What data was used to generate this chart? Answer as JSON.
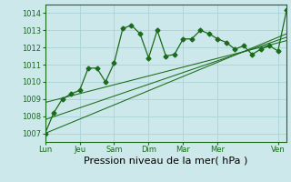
{
  "title": "Pression niveau de la mer( hPa )",
  "bg_color": "#cce8ea",
  "grid_color": "#aad4d6",
  "line_color": "#1a6b1a",
  "spine_color": "#1a6b1a",
  "xlim": [
    0,
    28
  ],
  "ylim": [
    1006.5,
    1014.5
  ],
  "yticks": [
    1007,
    1008,
    1009,
    1010,
    1011,
    1012,
    1013,
    1014
  ],
  "xtick_labels": [
    "Lun",
    "Jeu",
    "Sam",
    "Dim",
    "Mar",
    "Mer",
    "Ven"
  ],
  "xtick_positions": [
    0,
    4,
    8,
    12,
    16,
    20,
    27
  ],
  "main_x": [
    0,
    1,
    2,
    3,
    4,
    5,
    6,
    7,
    8,
    9,
    10,
    11,
    12,
    13,
    14,
    15,
    16,
    17,
    18,
    19,
    20,
    21,
    22,
    23,
    24,
    25,
    26,
    27,
    28
  ],
  "main_y": [
    1007.0,
    1008.2,
    1009.0,
    1009.3,
    1009.5,
    1010.8,
    1010.8,
    1010.0,
    1011.1,
    1013.1,
    1013.3,
    1012.8,
    1011.4,
    1013.0,
    1011.5,
    1011.6,
    1012.5,
    1012.5,
    1013.0,
    1012.8,
    1012.5,
    1012.3,
    1011.9,
    1012.1,
    1011.6,
    1011.9,
    1012.1,
    1011.8,
    1014.2
  ],
  "trend1_x": [
    0,
    28
  ],
  "trend1_y": [
    1007.0,
    1012.8
  ],
  "trend2_x": [
    0,
    28
  ],
  "trend2_y": [
    1007.8,
    1012.6
  ],
  "trend3_x": [
    0,
    28
  ],
  "trend3_y": [
    1008.8,
    1012.4
  ],
  "marker": "D",
  "marker_size": 2.5,
  "linewidth": 0.9,
  "trend_linewidth": 0.75,
  "tick_fontsize": 6.0,
  "xlabel_fontsize": 8.0
}
